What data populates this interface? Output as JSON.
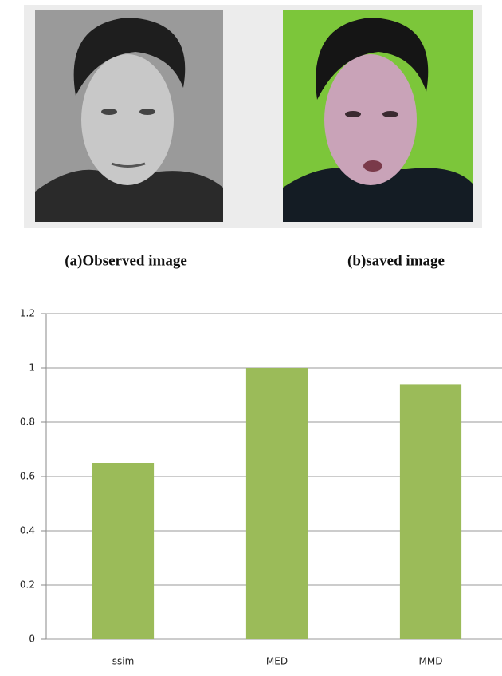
{
  "figure": {
    "captions": [
      "(a)Observed image",
      "(b)saved image"
    ]
  },
  "chart_data": {
    "type": "bar",
    "categories": [
      "ssim",
      "MED",
      "MMD"
    ],
    "values": [
      0.65,
      1.0,
      0.94
    ],
    "color": "#9bbb59",
    "ylim": [
      0,
      1.2
    ],
    "yticks": [
      0,
      0.2,
      0.4,
      0.6,
      0.8,
      1,
      1.2
    ],
    "grid": true
  }
}
